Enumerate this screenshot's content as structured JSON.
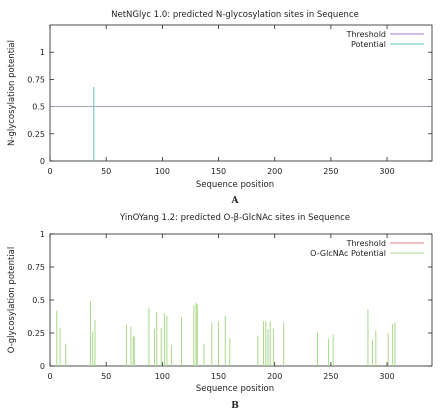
{
  "chart_data": [
    {
      "type": "bar",
      "panel_letter": "A",
      "title": "NetNGlyc 1.0: predicted N-glycosylation sites in Sequence",
      "xlabel": "Sequence position",
      "ylabel": "N-glycosylation potential",
      "xlim": [
        0,
        340
      ],
      "ylim": [
        0,
        1.25
      ],
      "xticks": [
        0,
        50,
        100,
        150,
        200,
        250,
        300
      ],
      "yticks": [
        0,
        0.25,
        0.5,
        0.75,
        1
      ],
      "ytick_labels": [
        "0",
        "0.25",
        "0.5",
        "0.75",
        "1"
      ],
      "legend_position": "top-right",
      "threshold": {
        "name": "Threshold",
        "value": 0.5,
        "color": "#9b7bd1"
      },
      "series": [
        {
          "name": "Potential",
          "color": "#5fc0c4",
          "x": [
            39
          ],
          "values": [
            0.68
          ]
        }
      ]
    },
    {
      "type": "bar",
      "panel_letter": "B",
      "title": "YinOYang 1.2: predicted O-β-GlcNAc sites in Sequence",
      "xlabel": "Sequence position",
      "ylabel": "O-glycosylation potential",
      "xlim": [
        0,
        340
      ],
      "ylim": [
        0,
        1
      ],
      "xticks": [
        0,
        50,
        100,
        150,
        200,
        250,
        300
      ],
      "yticks": [
        0,
        0.25,
        0.5,
        0.75,
        1
      ],
      "ytick_labels": [
        "0",
        "0.25",
        "0.5",
        "0.75",
        "1"
      ],
      "legend_position": "top-right",
      "threshold": {
        "name": "Threshold",
        "value": null,
        "color": "#f08080"
      },
      "series": [
        {
          "name": "O-GlcNAc Potential",
          "color": "#a8d88a",
          "x": [
            6,
            9,
            14,
            36,
            38,
            40,
            68,
            72,
            74,
            75,
            88,
            93,
            95,
            99,
            102,
            104,
            108,
            117,
            128,
            130,
            131,
            137,
            144,
            150,
            156,
            160,
            185,
            190,
            192,
            194,
            196,
            199,
            208,
            238,
            248,
            252,
            283,
            287,
            290,
            301,
            305,
            307
          ],
          "values": [
            0.42,
            0.29,
            0.17,
            0.49,
            0.26,
            0.35,
            0.31,
            0.3,
            0.23,
            0.22,
            0.44,
            0.28,
            0.41,
            0.29,
            0.4,
            0.38,
            0.16,
            0.37,
            0.46,
            0.48,
            0.47,
            0.17,
            0.33,
            0.34,
            0.38,
            0.21,
            0.23,
            0.34,
            0.34,
            0.28,
            0.34,
            0.28,
            0.33,
            0.26,
            0.21,
            0.24,
            0.43,
            0.2,
            0.27,
            0.25,
            0.32,
            0.33
          ]
        }
      ]
    }
  ]
}
